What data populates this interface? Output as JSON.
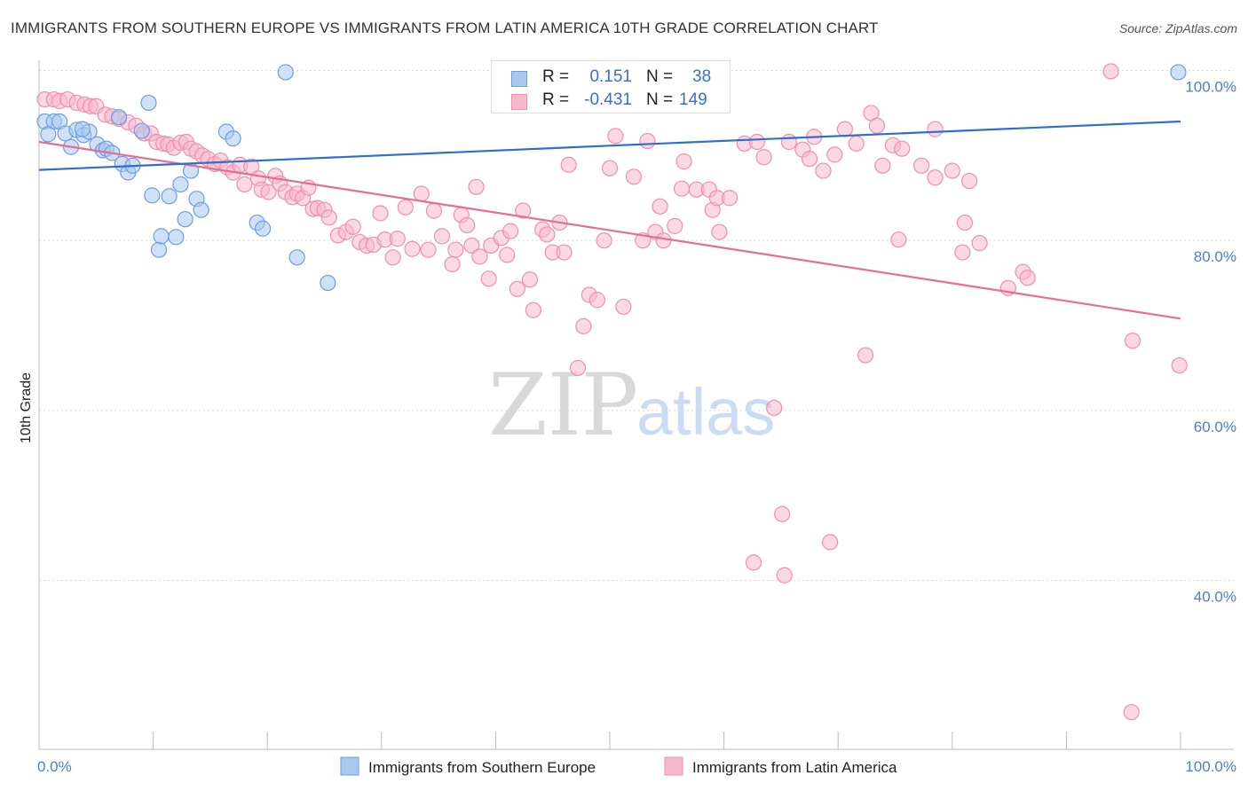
{
  "title": "IMMIGRANTS FROM SOUTHERN EUROPE VS IMMIGRANTS FROM LATIN AMERICA 10TH GRADE CORRELATION CHART",
  "source": "Source: ZipAtlas.com",
  "watermark": {
    "zip": "ZIP",
    "atlas": "atlas"
  },
  "colors": {
    "blue_fill": "#a9c8f0",
    "blue_stroke": "#6a9ee0",
    "blue_line": "#2f6fcb",
    "pink_fill": "#f7b8cc",
    "pink_stroke": "#ee8fae",
    "pink_line": "#e86b96",
    "tick_label": "#4a7fd0",
    "grid": "#d9d9d9"
  },
  "stats": {
    "rows": [
      {
        "r_label": "R =",
        "r_value": "0.151",
        "n_label": "N =",
        "n_value": "38"
      },
      {
        "r_label": "R =",
        "r_value": "-0.431",
        "n_label": "N =",
        "n_value": "149"
      }
    ]
  },
  "legend": {
    "items": [
      "Immigrants from Southern Europe",
      "Immigrants from Latin America"
    ]
  },
  "chart_data": {
    "type": "scatter",
    "title": "IMMIGRANTS FROM SOUTHERN EUROPE VS IMMIGRANTS FROM LATIN AMERICA 10TH GRADE CORRELATION CHART",
    "xlabel": "",
    "ylabel": "10th Grade",
    "xlim": [
      0,
      100
    ],
    "ylim": [
      20,
      101
    ],
    "x_tick_labels": [
      "0.0%",
      "100.0%"
    ],
    "y_ticks": [
      40,
      60,
      80,
      100
    ],
    "y_tick_labels": [
      "40.0%",
      "60.0%",
      "80.0%",
      "100.0%"
    ],
    "grid": true,
    "legend_position": "bottom",
    "series": [
      {
        "name": "Immigrants from Southern Europe",
        "r": 0.151,
        "n": 38,
        "trend": [
          [
            0,
            88.3
          ],
          [
            100,
            94.0
          ]
        ],
        "points": [
          [
            0.5,
            94.0
          ],
          [
            1.3,
            94.0
          ],
          [
            1.8,
            94.0
          ],
          [
            2.3,
            92.6
          ],
          [
            2.8,
            91.0
          ],
          [
            3.3,
            93.0
          ],
          [
            3.9,
            92.4
          ],
          [
            4.4,
            92.8
          ],
          [
            5.1,
            91.3
          ],
          [
            5.6,
            90.6
          ],
          [
            5.9,
            90.8
          ],
          [
            6.4,
            90.3
          ],
          [
            7.3,
            89.0
          ],
          [
            7.8,
            88.0
          ],
          [
            8.2,
            88.8
          ],
          [
            9.0,
            92.9
          ],
          [
            9.6,
            96.2
          ],
          [
            9.9,
            85.3
          ],
          [
            10.5,
            78.9
          ],
          [
            10.7,
            80.5
          ],
          [
            11.4,
            85.2
          ],
          [
            12.0,
            80.4
          ],
          [
            12.4,
            86.6
          ],
          [
            12.8,
            82.5
          ],
          [
            13.3,
            88.2
          ],
          [
            13.8,
            84.9
          ],
          [
            14.2,
            83.6
          ],
          [
            16.4,
            92.8
          ],
          [
            17.0,
            92.0
          ],
          [
            19.1,
            82.1
          ],
          [
            19.6,
            81.4
          ],
          [
            21.6,
            99.8
          ],
          [
            22.6,
            78.0
          ],
          [
            25.3,
            75.0
          ],
          [
            0.8,
            92.5
          ],
          [
            7.0,
            94.5
          ],
          [
            99.8,
            99.8
          ],
          [
            3.8,
            93.1
          ]
        ]
      },
      {
        "name": "Immigrants from Latin America",
        "r": -0.431,
        "n": 149,
        "trend": [
          [
            0,
            91.6
          ],
          [
            100,
            70.8
          ]
        ],
        "points": [
          [
            0.5,
            96.6
          ],
          [
            1.3,
            96.6
          ],
          [
            1.8,
            96.4
          ],
          [
            2.5,
            96.6
          ],
          [
            3.3,
            96.2
          ],
          [
            4.0,
            96.0
          ],
          [
            4.5,
            95.8
          ],
          [
            5.0,
            95.8
          ],
          [
            5.8,
            94.8
          ],
          [
            6.4,
            94.6
          ],
          [
            7.0,
            94.3
          ],
          [
            7.8,
            93.9
          ],
          [
            8.5,
            93.5
          ],
          [
            9.2,
            92.6
          ],
          [
            9.8,
            92.6
          ],
          [
            10.3,
            91.6
          ],
          [
            10.9,
            91.4
          ],
          [
            11.3,
            91.3
          ],
          [
            11.8,
            90.9
          ],
          [
            12.4,
            91.5
          ],
          [
            12.9,
            91.6
          ],
          [
            13.3,
            90.8
          ],
          [
            13.8,
            90.5
          ],
          [
            14.3,
            90.0
          ],
          [
            14.8,
            89.6
          ],
          [
            15.4,
            89.0
          ],
          [
            15.9,
            89.4
          ],
          [
            16.5,
            88.6
          ],
          [
            17.0,
            88.0
          ],
          [
            17.6,
            88.9
          ],
          [
            18.0,
            86.6
          ],
          [
            18.6,
            88.7
          ],
          [
            19.2,
            87.3
          ],
          [
            19.5,
            86.0
          ],
          [
            20.1,
            85.7
          ],
          [
            20.7,
            87.6
          ],
          [
            21.1,
            86.7
          ],
          [
            21.6,
            85.7
          ],
          [
            22.2,
            85.1
          ],
          [
            22.6,
            85.5
          ],
          [
            23.1,
            85.0
          ],
          [
            23.6,
            86.2
          ],
          [
            24.0,
            83.7
          ],
          [
            24.4,
            83.8
          ],
          [
            25.0,
            83.6
          ],
          [
            25.4,
            82.7
          ],
          [
            26.2,
            80.6
          ],
          [
            26.9,
            81.0
          ],
          [
            27.5,
            81.6
          ],
          [
            28.1,
            79.8
          ],
          [
            28.7,
            79.4
          ],
          [
            29.3,
            79.5
          ],
          [
            29.9,
            83.2
          ],
          [
            30.3,
            80.1
          ],
          [
            31.0,
            78.0
          ],
          [
            31.4,
            80.2
          ],
          [
            32.1,
            83.9
          ],
          [
            32.7,
            79.0
          ],
          [
            33.5,
            85.5
          ],
          [
            34.1,
            78.9
          ],
          [
            34.6,
            83.5
          ],
          [
            35.3,
            80.5
          ],
          [
            36.2,
            77.2
          ],
          [
            36.5,
            78.9
          ],
          [
            37.0,
            83.0
          ],
          [
            37.5,
            81.8
          ],
          [
            37.9,
            79.4
          ],
          [
            38.3,
            86.3
          ],
          [
            38.6,
            78.1
          ],
          [
            39.4,
            75.5
          ],
          [
            39.6,
            79.4
          ],
          [
            40.5,
            80.3
          ],
          [
            41.0,
            78.3
          ],
          [
            41.3,
            81.1
          ],
          [
            41.9,
            74.3
          ],
          [
            42.4,
            83.5
          ],
          [
            43.0,
            75.4
          ],
          [
            43.3,
            71.8
          ],
          [
            44.1,
            81.3
          ],
          [
            44.5,
            80.7
          ],
          [
            45.0,
            78.6
          ],
          [
            45.6,
            82.1
          ],
          [
            46.0,
            78.6
          ],
          [
            46.4,
            88.9
          ],
          [
            47.2,
            65.0
          ],
          [
            47.7,
            69.9
          ],
          [
            48.2,
            73.6
          ],
          [
            48.9,
            73.0
          ],
          [
            49.5,
            80.0
          ],
          [
            50.0,
            88.5
          ],
          [
            50.5,
            92.3
          ],
          [
            51.2,
            72.2
          ],
          [
            52.1,
            87.5
          ],
          [
            52.9,
            80.0
          ],
          [
            53.3,
            91.7
          ],
          [
            54.0,
            81.0
          ],
          [
            54.4,
            84.0
          ],
          [
            54.7,
            80.0
          ],
          [
            55.7,
            81.7
          ],
          [
            56.3,
            86.1
          ],
          [
            56.5,
            89.3
          ],
          [
            57.6,
            86.0
          ],
          [
            58.4,
            96.0
          ],
          [
            58.7,
            86.0
          ],
          [
            59.0,
            83.6
          ],
          [
            59.4,
            85.0
          ],
          [
            59.6,
            81.0
          ],
          [
            60.5,
            85.0
          ],
          [
            61.8,
            91.4
          ],
          [
            62.6,
            42.1
          ],
          [
            62.9,
            91.6
          ],
          [
            63.5,
            89.8
          ],
          [
            64.4,
            60.3
          ],
          [
            65.1,
            47.8
          ],
          [
            65.3,
            40.6
          ],
          [
            65.7,
            91.6
          ],
          [
            66.9,
            90.7
          ],
          [
            67.5,
            89.6
          ],
          [
            67.9,
            92.2
          ],
          [
            68.7,
            88.2
          ],
          [
            69.3,
            44.5
          ],
          [
            69.7,
            90.1
          ],
          [
            70.6,
            93.1
          ],
          [
            71.6,
            91.4
          ],
          [
            72.4,
            66.5
          ],
          [
            72.9,
            95.0
          ],
          [
            73.4,
            93.5
          ],
          [
            73.9,
            88.8
          ],
          [
            74.8,
            91.2
          ],
          [
            75.3,
            80.1
          ],
          [
            75.6,
            90.8
          ],
          [
            77.3,
            88.8
          ],
          [
            78.5,
            87.4
          ],
          [
            78.5,
            93.1
          ],
          [
            80.0,
            88.2
          ],
          [
            80.9,
            78.6
          ],
          [
            81.1,
            82.1
          ],
          [
            81.5,
            87.0
          ],
          [
            82.4,
            79.7
          ],
          [
            84.9,
            74.4
          ],
          [
            86.2,
            76.3
          ],
          [
            86.6,
            75.6
          ],
          [
            93.9,
            99.9
          ],
          [
            95.7,
            24.5
          ],
          [
            95.8,
            68.2
          ],
          [
            99.9,
            65.3
          ]
        ]
      }
    ]
  }
}
